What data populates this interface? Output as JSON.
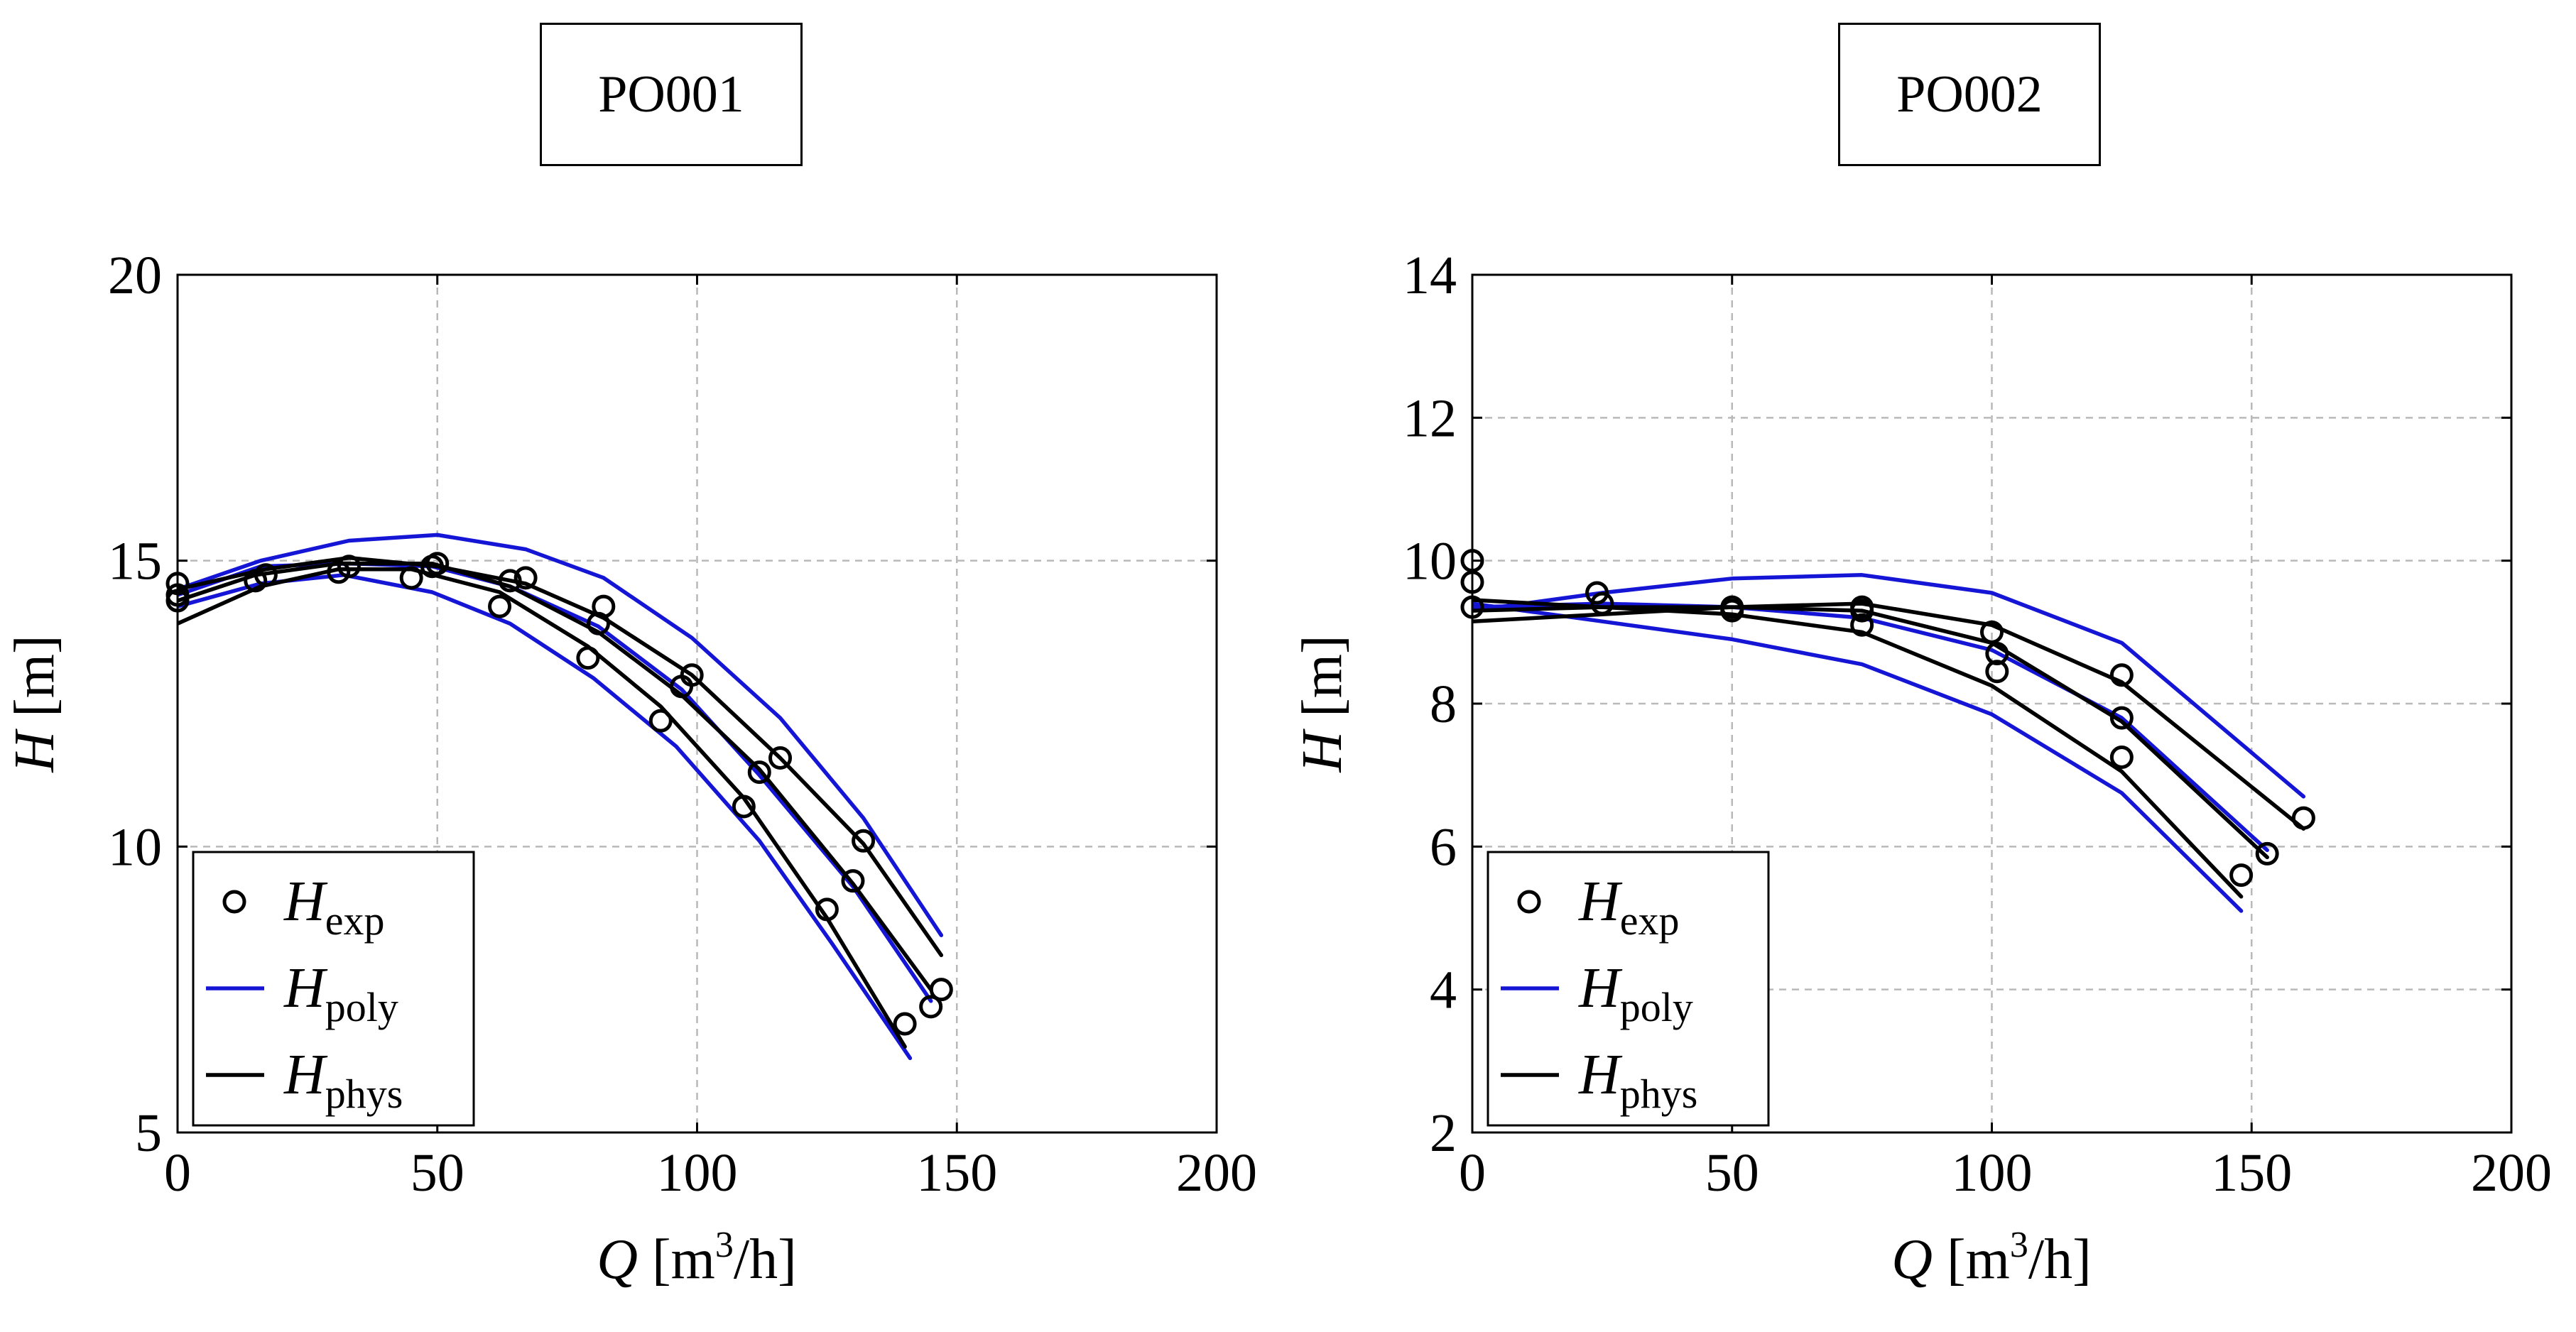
{
  "panels": [
    {
      "title": "PO001"
    },
    {
      "title": "PO002"
    }
  ],
  "chart_data": [
    {
      "type": "line",
      "title": "PO001",
      "xlabel": "Q [m3/h]",
      "ylabel": "H [m]",
      "xlim": [
        0,
        200
      ],
      "ylim": [
        5,
        20
      ],
      "xticks": [
        0,
        50,
        100,
        150,
        200
      ],
      "yticks": [
        5,
        10,
        15,
        20
      ],
      "xtick_labels": [
        "0",
        "50",
        "100",
        "150",
        "200"
      ],
      "ytick_labels": [
        "5",
        "10",
        "15",
        "20"
      ],
      "grid": true,
      "legend_position": "bottom-left",
      "legend": [
        {
          "symbol": "H",
          "sub": "exp",
          "style": "marker"
        },
        {
          "symbol": "H",
          "sub": "poly",
          "style": "line",
          "color": "#1515d6"
        },
        {
          "symbol": "H",
          "sub": "phys",
          "style": "line",
          "color": "#000000"
        }
      ],
      "series": [
        {
          "name": "H_exp",
          "kind": "scatter",
          "color": "#000000",
          "points": [
            [
              0,
              14.3
            ],
            [
              0,
              14.4
            ],
            [
              0,
              14.6
            ],
            [
              15,
              14.65
            ],
            [
              17,
              14.75
            ],
            [
              31,
              14.8
            ],
            [
              33,
              14.9
            ],
            [
              45,
              14.7
            ],
            [
              49,
              14.9
            ],
            [
              50,
              14.95
            ],
            [
              62,
              14.2
            ],
            [
              64,
              14.65
            ],
            [
              67,
              14.7
            ],
            [
              79,
              13.3
            ],
            [
              81,
              13.9
            ],
            [
              82,
              14.2
            ],
            [
              93,
              12.2
            ],
            [
              97,
              12.8
            ],
            [
              99,
              13.0
            ],
            [
              109,
              10.7
            ],
            [
              112,
              11.3
            ],
            [
              116,
              11.55
            ],
            [
              125,
              8.9
            ],
            [
              130,
              9.4
            ],
            [
              132,
              10.1
            ],
            [
              140,
              6.9
            ],
            [
              145,
              7.2
            ],
            [
              147,
              7.5
            ]
          ]
        },
        {
          "name": "H_poly (run 1)",
          "kind": "line",
          "color": "#1515d6",
          "points": [
            [
              0,
              14.2
            ],
            [
              16,
              14.6
            ],
            [
              32,
              14.75
            ],
            [
              49,
              14.45
            ],
            [
              64,
              13.9
            ],
            [
              80,
              12.95
            ],
            [
              96,
              11.75
            ],
            [
              112,
              10.1
            ],
            [
              126,
              8.3
            ],
            [
              141,
              6.3
            ]
          ]
        },
        {
          "name": "H_poly (run 2)",
          "kind": "line",
          "color": "#1515d6",
          "points": [
            [
              0,
              14.4
            ],
            [
              16,
              14.9
            ],
            [
              33,
              14.95
            ],
            [
              49,
              14.9
            ],
            [
              64,
              14.55
            ],
            [
              81,
              13.85
            ],
            [
              97,
              12.75
            ],
            [
              112,
              11.25
            ],
            [
              130,
              9.3
            ],
            [
              145,
              7.3
            ]
          ]
        },
        {
          "name": "H_poly (run 3)",
          "kind": "line",
          "color": "#1515d6",
          "points": [
            [
              0,
              14.5
            ],
            [
              16,
              15.0
            ],
            [
              33,
              15.35
            ],
            [
              50,
              15.45
            ],
            [
              67,
              15.2
            ],
            [
              82,
              14.7
            ],
            [
              99,
              13.65
            ],
            [
              116,
              12.25
            ],
            [
              132,
              10.5
            ],
            [
              147,
              8.45
            ]
          ]
        },
        {
          "name": "H_phys (run 1)",
          "kind": "line",
          "color": "#000000",
          "points": [
            [
              0,
              13.9
            ],
            [
              16,
              14.55
            ],
            [
              31,
              14.85
            ],
            [
              45,
              14.85
            ],
            [
              62,
              14.45
            ],
            [
              79,
              13.5
            ],
            [
              93,
              12.45
            ],
            [
              109,
              10.85
            ],
            [
              125,
              8.75
            ],
            [
              140,
              6.5
            ]
          ]
        },
        {
          "name": "H_phys (run 2)",
          "kind": "line",
          "color": "#000000",
          "points": [
            [
              0,
              14.3
            ],
            [
              15,
              14.75
            ],
            [
              31,
              14.95
            ],
            [
              49,
              14.95
            ],
            [
              64,
              14.55
            ],
            [
              81,
              13.75
            ],
            [
              97,
              12.65
            ],
            [
              112,
              11.35
            ],
            [
              130,
              9.35
            ],
            [
              145,
              7.5
            ]
          ]
        },
        {
          "name": "H_phys (run 3)",
          "kind": "line",
          "color": "#000000",
          "points": [
            [
              0,
              14.5
            ],
            [
              17,
              14.85
            ],
            [
              33,
              15.05
            ],
            [
              50,
              14.9
            ],
            [
              67,
              14.6
            ],
            [
              82,
              14.0
            ],
            [
              99,
              13.0
            ],
            [
              116,
              11.55
            ],
            [
              132,
              10.05
            ],
            [
              147,
              8.1
            ]
          ]
        }
      ]
    },
    {
      "type": "line",
      "title": "PO002",
      "xlabel": "Q [m3/h]",
      "ylabel": "H [m]",
      "xlim": [
        0,
        200
      ],
      "ylim": [
        2,
        14
      ],
      "xticks": [
        0,
        50,
        100,
        150,
        200
      ],
      "yticks": [
        2,
        4,
        6,
        8,
        10,
        12,
        14
      ],
      "xtick_labels": [
        "0",
        "50",
        "100",
        "150",
        "200"
      ],
      "ytick_labels": [
        "2",
        "4",
        "6",
        "8",
        "10",
        "12",
        "14"
      ],
      "grid": true,
      "legend_position": "bottom-left",
      "legend": [
        {
          "symbol": "H",
          "sub": "exp",
          "style": "marker"
        },
        {
          "symbol": "H",
          "sub": "poly",
          "style": "line",
          "color": "#1515d6"
        },
        {
          "symbol": "H",
          "sub": "phys",
          "style": "line",
          "color": "#000000"
        }
      ],
      "series": [
        {
          "name": "H_exp",
          "kind": "scatter",
          "color": "#000000",
          "points": [
            [
              0,
              9.35
            ],
            [
              0,
              9.7
            ],
            [
              0,
              10.0
            ],
            [
              24,
              9.55
            ],
            [
              25,
              9.4
            ],
            [
              50,
              9.3
            ],
            [
              50,
              9.35
            ],
            [
              75,
              9.1
            ],
            [
              75,
              9.3
            ],
            [
              75,
              9.35
            ],
            [
              100,
              9.0
            ],
            [
              101,
              8.45
            ],
            [
              101,
              8.7
            ],
            [
              125,
              7.25
            ],
            [
              125,
              7.8
            ],
            [
              125,
              8.4
            ],
            [
              148,
              5.6
            ],
            [
              153,
              5.9
            ],
            [
              160,
              6.4
            ]
          ]
        },
        {
          "name": "H_poly (run 1)",
          "kind": "line",
          "color": "#1515d6",
          "points": [
            [
              0,
              9.4
            ],
            [
              25,
              9.15
            ],
            [
              50,
              8.9
            ],
            [
              75,
              8.55
            ],
            [
              100,
              7.85
            ],
            [
              125,
              6.75
            ],
            [
              148,
              5.1
            ]
          ]
        },
        {
          "name": "H_poly (run 2)",
          "kind": "line",
          "color": "#1515d6",
          "points": [
            [
              0,
              9.35
            ],
            [
              25,
              9.4
            ],
            [
              50,
              9.35
            ],
            [
              75,
              9.2
            ],
            [
              100,
              8.75
            ],
            [
              125,
              7.8
            ],
            [
              153,
              5.95
            ]
          ]
        },
        {
          "name": "H_poly (run 3)",
          "kind": "line",
          "color": "#1515d6",
          "points": [
            [
              0,
              9.3
            ],
            [
              25,
              9.55
            ],
            [
              50,
              9.75
            ],
            [
              75,
              9.8
            ],
            [
              100,
              9.55
            ],
            [
              125,
              8.85
            ],
            [
              160,
              6.7
            ]
          ]
        },
        {
          "name": "H_phys (run 1)",
          "kind": "line",
          "color": "#000000",
          "points": [
            [
              0,
              9.45
            ],
            [
              25,
              9.35
            ],
            [
              50,
              9.25
            ],
            [
              75,
              9.0
            ],
            [
              100,
              8.25
            ],
            [
              125,
              7.05
            ],
            [
              148,
              5.3
            ]
          ]
        },
        {
          "name": "H_phys (run 2)",
          "kind": "line",
          "color": "#000000",
          "points": [
            [
              0,
              9.3
            ],
            [
              25,
              9.35
            ],
            [
              50,
              9.35
            ],
            [
              75,
              9.3
            ],
            [
              100,
              8.85
            ],
            [
              125,
              7.75
            ],
            [
              153,
              5.85
            ]
          ]
        },
        {
          "name": "H_phys (run 3)",
          "kind": "line",
          "color": "#000000",
          "points": [
            [
              0,
              9.15
            ],
            [
              25,
              9.25
            ],
            [
              50,
              9.35
            ],
            [
              75,
              9.4
            ],
            [
              100,
              9.1
            ],
            [
              125,
              8.3
            ],
            [
              160,
              6.25
            ]
          ]
        }
      ]
    }
  ]
}
